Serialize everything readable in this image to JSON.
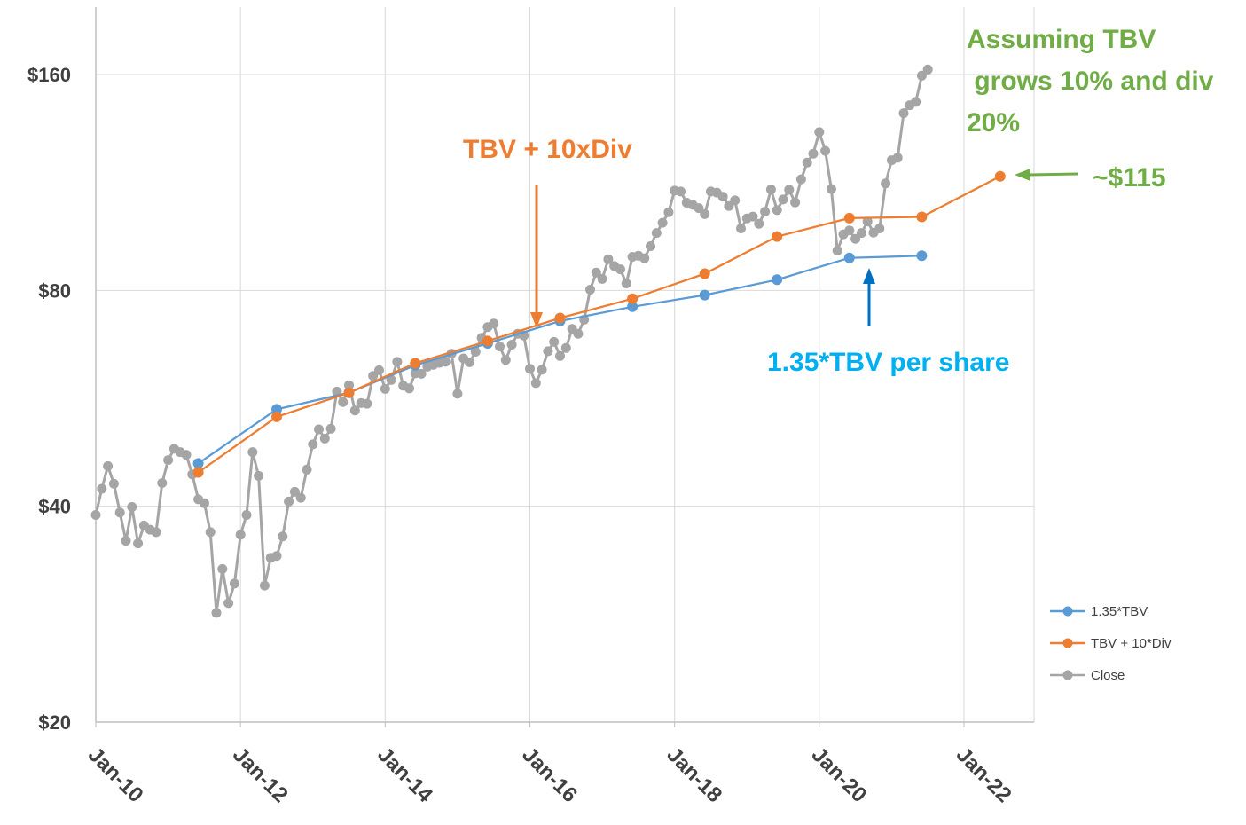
{
  "chart_data": {
    "type": "line",
    "title": "",
    "xlabel": "",
    "ylabel": "",
    "y_scale": "log",
    "ylim": [
      20,
      180
    ],
    "xlim": [
      "2010-01",
      "2022-10"
    ],
    "grid": true,
    "legend_position": "right",
    "y_ticks": [
      {
        "value": 20,
        "label": "$20"
      },
      {
        "value": 40,
        "label": "$40"
      },
      {
        "value": 80,
        "label": "$80"
      },
      {
        "value": 160,
        "label": "$160"
      }
    ],
    "x_ticks": [
      {
        "value": "2010-01",
        "label": "Jan-10"
      },
      {
        "value": "2012-01",
        "label": "Jan-12"
      },
      {
        "value": "2014-01",
        "label": "Jan-14"
      },
      {
        "value": "2016-01",
        "label": "Jan-16"
      },
      {
        "value": "2018-01",
        "label": "Jan-18"
      },
      {
        "value": "2020-01",
        "label": "Jan-20"
      },
      {
        "value": "2022-01",
        "label": "Jan-22"
      }
    ],
    "series": [
      {
        "name": "1.35*TBV",
        "color": "#5b9bd5",
        "points": [
          [
            "2011-06",
            45.9
          ],
          [
            "2012-07",
            54.6
          ],
          [
            "2013-07",
            57.6
          ],
          [
            "2014-06",
            62.9
          ],
          [
            "2015-06",
            67.5
          ],
          [
            "2016-06",
            72.5
          ],
          [
            "2017-06",
            75.9
          ],
          [
            "2018-06",
            78.8
          ],
          [
            "2019-06",
            82.8
          ],
          [
            "2020-06",
            88.8
          ],
          [
            "2021-06",
            89.4
          ]
        ]
      },
      {
        "name": "TBV + 10*Div",
        "color": "#ed7d31",
        "points": [
          [
            "2011-06",
            44.6
          ],
          [
            "2012-07",
            53.3
          ],
          [
            "2013-07",
            57.6
          ],
          [
            "2014-06",
            63.3
          ],
          [
            "2015-06",
            68.0
          ],
          [
            "2016-06",
            73.2
          ],
          [
            "2017-06",
            77.9
          ],
          [
            "2018-06",
            84.4
          ],
          [
            "2019-06",
            95.1
          ],
          [
            "2020-06",
            100.9
          ],
          [
            "2021-06",
            101.3
          ],
          [
            "2022-07",
            115.4
          ]
        ]
      },
      {
        "name": "Close",
        "color": "#a5a5a5",
        "points": [
          [
            "2010-01",
            38.9
          ],
          [
            "2010-02",
            42.3
          ],
          [
            "2010-03",
            45.5
          ],
          [
            "2010-04",
            43.0
          ],
          [
            "2010-05",
            39.2
          ],
          [
            "2010-06",
            35.8
          ],
          [
            "2010-07",
            39.9
          ],
          [
            "2010-08",
            35.5
          ],
          [
            "2010-09",
            37.6
          ],
          [
            "2010-10",
            37.1
          ],
          [
            "2010-11",
            36.8
          ],
          [
            "2010-12",
            43.1
          ],
          [
            "2011-01",
            46.4
          ],
          [
            "2011-02",
            48.1
          ],
          [
            "2011-03",
            47.6
          ],
          [
            "2011-04",
            47.2
          ],
          [
            "2011-05",
            44.3
          ],
          [
            "2011-06",
            40.9
          ],
          [
            "2011-07",
            40.4
          ],
          [
            "2011-08",
            36.8
          ],
          [
            "2011-09",
            28.4
          ],
          [
            "2011-10",
            32.7
          ],
          [
            "2011-11",
            29.3
          ],
          [
            "2011-12",
            31.2
          ],
          [
            "2012-01",
            36.5
          ],
          [
            "2012-02",
            38.9
          ],
          [
            "2012-03",
            47.6
          ],
          [
            "2012-04",
            44.1
          ],
          [
            "2012-05",
            31.0
          ],
          [
            "2012-06",
            33.9
          ],
          [
            "2012-07",
            34.1
          ],
          [
            "2012-08",
            36.3
          ],
          [
            "2012-09",
            40.6
          ],
          [
            "2012-10",
            41.9
          ],
          [
            "2012-11",
            41.1
          ],
          [
            "2012-12",
            45.0
          ],
          [
            "2013-01",
            48.8
          ],
          [
            "2013-02",
            51.2
          ],
          [
            "2013-03",
            49.7
          ],
          [
            "2013-04",
            51.3
          ],
          [
            "2013-05",
            57.8
          ],
          [
            "2013-06",
            55.9
          ],
          [
            "2013-07",
            59.0
          ],
          [
            "2013-08",
            54.4
          ],
          [
            "2013-09",
            55.7
          ],
          [
            "2013-10",
            55.6
          ],
          [
            "2013-11",
            60.8
          ],
          [
            "2013-12",
            61.9
          ],
          [
            "2014-01",
            58.3
          ],
          [
            "2014-02",
            60.0
          ],
          [
            "2014-03",
            63.6
          ],
          [
            "2014-04",
            58.9
          ],
          [
            "2014-05",
            58.4
          ],
          [
            "2014-06",
            61.3
          ],
          [
            "2014-07",
            61.2
          ],
          [
            "2014-08",
            62.6
          ],
          [
            "2014-09",
            63.0
          ],
          [
            "2014-10",
            63.4
          ],
          [
            "2014-11",
            63.6
          ],
          [
            "2014-12",
            65.3
          ],
          [
            "2015-01",
            57.4
          ],
          [
            "2015-02",
            64.3
          ],
          [
            "2015-03",
            63.5
          ],
          [
            "2015-04",
            65.7
          ],
          [
            "2015-05",
            68.7
          ],
          [
            "2015-06",
            71.1
          ],
          [
            "2015-07",
            71.9
          ],
          [
            "2015-08",
            66.8
          ],
          [
            "2015-09",
            64.0
          ],
          [
            "2015-10",
            67.2
          ],
          [
            "2015-11",
            69.6
          ],
          [
            "2015-12",
            69.2
          ],
          [
            "2016-01",
            62.2
          ],
          [
            "2016-02",
            59.4
          ],
          [
            "2016-03",
            62.0
          ],
          [
            "2016-04",
            65.8
          ],
          [
            "2016-05",
            67.8
          ],
          [
            "2016-06",
            64.8
          ],
          [
            "2016-07",
            66.5
          ],
          [
            "2016-08",
            70.7
          ],
          [
            "2016-09",
            69.6
          ],
          [
            "2016-10",
            72.8
          ],
          [
            "2016-11",
            80.2
          ],
          [
            "2016-12",
            84.7
          ],
          [
            "2017-01",
            83.0
          ],
          [
            "2017-02",
            88.4
          ],
          [
            "2017-03",
            86.5
          ],
          [
            "2017-04",
            85.6
          ],
          [
            "2017-05",
            81.8
          ],
          [
            "2017-06",
            89.1
          ],
          [
            "2017-07",
            89.4
          ],
          [
            "2017-08",
            88.7
          ],
          [
            "2017-09",
            92.2
          ],
          [
            "2017-10",
            96.2
          ],
          [
            "2017-11",
            99.4
          ],
          [
            "2017-12",
            102.8
          ],
          [
            "2018-01",
            110.2
          ],
          [
            "2018-02",
            109.9
          ],
          [
            "2018-03",
            106.0
          ],
          [
            "2018-04",
            105.3
          ],
          [
            "2018-05",
            104.2
          ],
          [
            "2018-06",
            102.2
          ],
          [
            "2018-07",
            109.9
          ],
          [
            "2018-08",
            109.5
          ],
          [
            "2018-09",
            108.1
          ],
          [
            "2018-10",
            104.9
          ],
          [
            "2018-11",
            106.8
          ],
          [
            "2018-12",
            97.6
          ],
          [
            "2019-01",
            100.8
          ],
          [
            "2019-02",
            101.4
          ],
          [
            "2019-03",
            99.1
          ],
          [
            "2019-04",
            103.0
          ],
          [
            "2019-05",
            110.6
          ],
          [
            "2019-06",
            103.5
          ],
          [
            "2019-07",
            107.1
          ],
          [
            "2019-08",
            110.5
          ],
          [
            "2019-09",
            106.1
          ],
          [
            "2019-10",
            114.3
          ],
          [
            "2019-11",
            120.6
          ],
          [
            "2019-12",
            124.1
          ],
          [
            "2020-01",
            133.0
          ],
          [
            "2020-02",
            125.2
          ],
          [
            "2020-03",
            110.8
          ],
          [
            "2020-04",
            90.9
          ],
          [
            "2020-05",
            95.8
          ],
          [
            "2020-06",
            97.0
          ],
          [
            "2020-07",
            94.4
          ],
          [
            "2020-08",
            96.2
          ],
          [
            "2020-09",
            99.8
          ],
          [
            "2020-10",
            96.3
          ],
          [
            "2020-11",
            97.6
          ],
          [
            "2020-12",
            112.8
          ],
          [
            "2021-01",
            121.5
          ],
          [
            "2021-02",
            122.5
          ],
          [
            "2021-03",
            141.3
          ],
          [
            "2021-04",
            145.0
          ],
          [
            "2021-05",
            146.5
          ],
          [
            "2021-06",
            159.4
          ],
          [
            "2021-07",
            162.6
          ]
        ]
      }
    ],
    "annotations": [
      {
        "text": "TBV + 10xDiv",
        "color": "#ed7d31"
      },
      {
        "text": "1.35*TBV per share",
        "color": "#00b0f0"
      },
      {
        "text": "Assuming TBV",
        "color": "#70ad47"
      },
      {
        "text": " grows 10% and div",
        "color": "#70ad47"
      },
      {
        "text": "20%",
        "color": "#70ad47"
      },
      {
        "text": "~$115",
        "color": "#70ad47"
      }
    ]
  }
}
